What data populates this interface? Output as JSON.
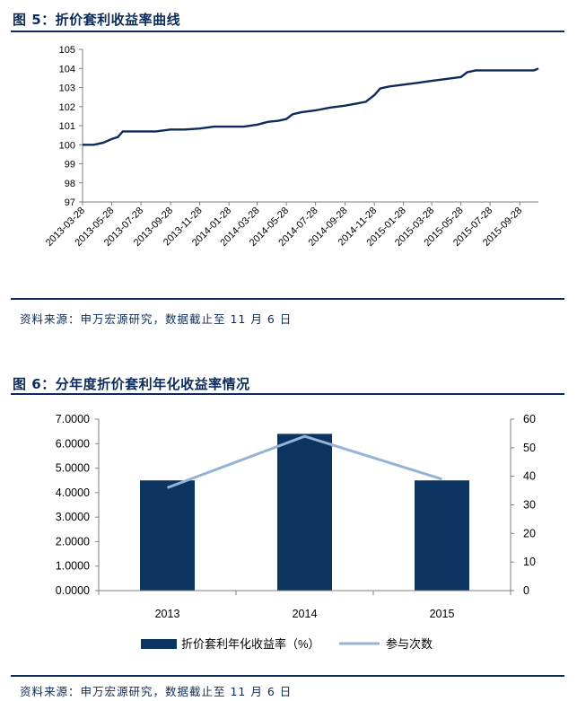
{
  "figure5": {
    "title": "图 5：折价套利收益率曲线",
    "source": "资料来源：申万宏源研究，数据截止至 11 月 6 日"
  },
  "figure6": {
    "title": "图 6：分年度折价套利年化收益率情况",
    "source": "资料来源：申万宏源研究，数据截止至 11 月 6 日"
  },
  "chart_data": [
    {
      "type": "line",
      "title": "",
      "xlabel": "",
      "ylabel": "",
      "ylim": [
        97,
        105
      ],
      "yticks": [
        "97",
        "98",
        "99",
        "100",
        "101",
        "102",
        "103",
        "104",
        "105"
      ],
      "xticks": [
        "2013-03-28",
        "2013-05-28",
        "2013-07-28",
        "2013-09-28",
        "2013-11-28",
        "2014-01-28",
        "2014-03-28",
        "2014-05-28",
        "2014-07-28",
        "2014-09-28",
        "2014-11-28",
        "2015-01-28",
        "2015-03-28",
        "2015-05-28",
        "2015-07-28",
        "2015-09-28"
      ],
      "grid": false,
      "color": "#0c2b5b",
      "x": [
        "2013-03-28",
        "2013-04-20",
        "2013-05-10",
        "2013-05-28",
        "2013-06-10",
        "2013-06-20",
        "2013-07-28",
        "2013-08-28",
        "2013-09-28",
        "2013-10-28",
        "2013-11-28",
        "2013-12-28",
        "2014-01-28",
        "2014-02-28",
        "2014-03-28",
        "2014-04-20",
        "2014-05-10",
        "2014-05-28",
        "2014-06-10",
        "2014-06-28",
        "2014-07-28",
        "2014-08-28",
        "2014-09-28",
        "2014-10-20",
        "2014-11-10",
        "2014-11-28",
        "2014-12-10",
        "2014-12-28",
        "2015-01-28",
        "2015-02-28",
        "2015-03-28",
        "2015-04-28",
        "2015-05-28",
        "2015-06-10",
        "2015-06-28",
        "2015-07-28",
        "2015-08-28",
        "2015-09-28",
        "2015-10-28",
        "2015-11-06"
      ],
      "values": [
        100.0,
        100.0,
        100.1,
        100.3,
        100.4,
        100.7,
        100.7,
        100.7,
        100.8,
        100.8,
        100.85,
        100.95,
        100.95,
        100.95,
        101.05,
        101.2,
        101.25,
        101.35,
        101.6,
        101.7,
        101.8,
        101.95,
        102.05,
        102.15,
        102.25,
        102.6,
        102.95,
        103.05,
        103.15,
        103.25,
        103.35,
        103.45,
        103.55,
        103.8,
        103.9,
        103.9,
        103.9,
        103.9,
        103.9,
        104.0
      ]
    },
    {
      "type": "bar",
      "title": "",
      "xlabel": "",
      "ylabel": "",
      "categories": [
        "2013",
        "2014",
        "2015"
      ],
      "ylim": [
        0,
        7
      ],
      "yticks": [
        "0.0000",
        "1.0000",
        "2.0000",
        "3.0000",
        "4.0000",
        "5.0000",
        "6.0000",
        "7.0000"
      ],
      "y2lim": [
        0,
        60
      ],
      "y2ticks": [
        "0",
        "10",
        "20",
        "30",
        "40",
        "50",
        "60"
      ],
      "legend_position": "bottom",
      "series": [
        {
          "name": "折价套利年化收益率（%）",
          "type": "bar",
          "axis": "left",
          "color": "#0c3461",
          "values": [
            4.5,
            6.4,
            4.5
          ]
        },
        {
          "name": "参与次数",
          "type": "line",
          "axis": "right",
          "color": "#95b3d7",
          "values": [
            36,
            54,
            39
          ]
        }
      ]
    }
  ]
}
